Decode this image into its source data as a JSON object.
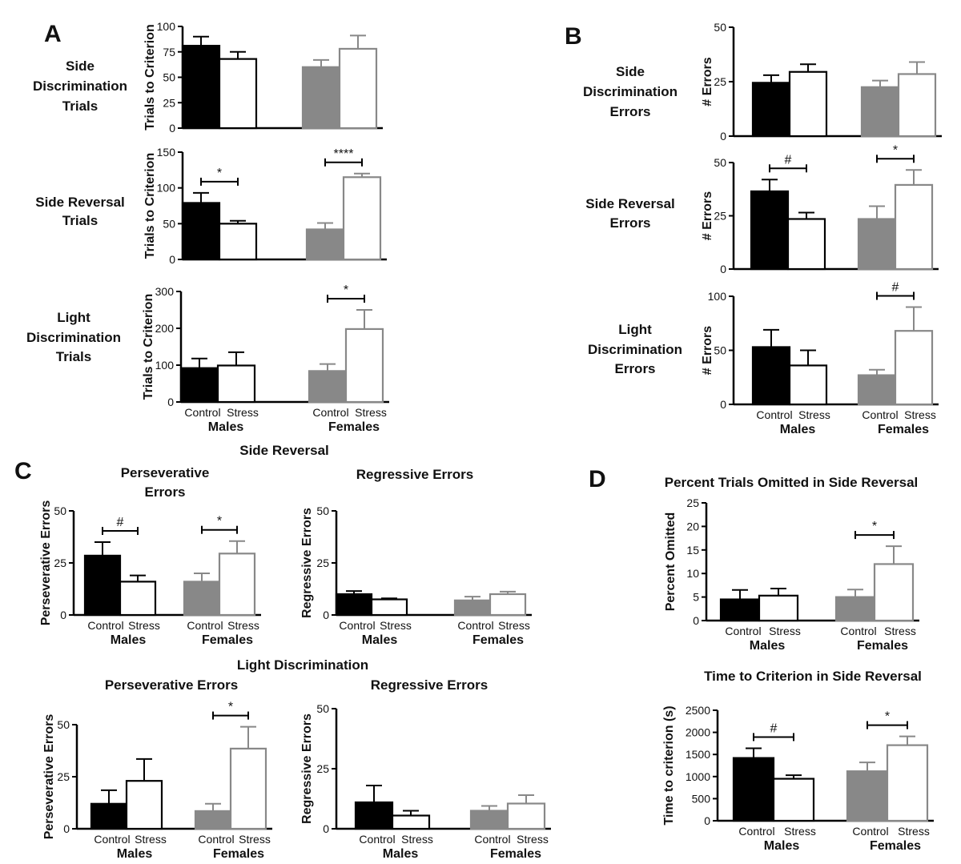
{
  "panels": {
    "A": "A",
    "B": "B",
    "C": "C",
    "D": "D"
  },
  "colors": {
    "male_control": "#000000",
    "male_stress": "#000000",
    "female_control": "#888888",
    "female_stress": "#888888",
    "axis": "#000000"
  },
  "common": {
    "categories": [
      "Control",
      "Stress",
      "Control",
      "Stress"
    ],
    "groups": [
      "Males",
      "Females"
    ]
  },
  "section_titles": {
    "c_side_reversal": "Side Reversal",
    "c_light_discrimination": "Light Discrimination"
  },
  "chart_data": [
    {
      "id": "A1",
      "type": "bar",
      "row_label": [
        "Side",
        "Discrimination",
        "Trials"
      ],
      "title": "",
      "ylabel": "Trials to Criterion",
      "ylim": [
        0,
        100
      ],
      "yticks": [
        0,
        25,
        50,
        75,
        100
      ],
      "categories": [
        "Control",
        "Stress",
        "Control",
        "Stress"
      ],
      "groups": [
        "Males",
        "Females"
      ],
      "values": [
        81,
        68,
        60,
        78
      ],
      "errors": [
        9,
        7,
        7,
        13
      ],
      "significance": []
    },
    {
      "id": "A2",
      "type": "bar",
      "row_label": [
        "Side Reversal",
        "Trials"
      ],
      "title": "",
      "ylabel": "Trials to Criterion",
      "ylim": [
        0,
        150
      ],
      "yticks": [
        0,
        50,
        100,
        150
      ],
      "categories": [
        "Control",
        "Stress",
        "Control",
        "Stress"
      ],
      "groups": [
        "Males",
        "Females"
      ],
      "values": [
        79,
        50,
        42,
        115
      ],
      "errors": [
        14,
        4,
        9,
        5
      ],
      "significance": [
        {
          "group": "Males",
          "label": "*"
        },
        {
          "group": "Females",
          "label": "****"
        }
      ]
    },
    {
      "id": "A3",
      "type": "bar",
      "row_label": [
        "Light",
        "Discrimination",
        "Trials"
      ],
      "title": "",
      "ylabel": "Trials to Criterion",
      "ylim": [
        0,
        300
      ],
      "yticks": [
        0,
        100,
        200,
        300
      ],
      "categories": [
        "Control",
        "Stress",
        "Control",
        "Stress"
      ],
      "groups": [
        "Males",
        "Females"
      ],
      "values": [
        92,
        99,
        84,
        198
      ],
      "errors": [
        26,
        36,
        19,
        52
      ],
      "significance": [
        {
          "group": "Females",
          "label": "*"
        }
      ]
    },
    {
      "id": "B1",
      "type": "bar",
      "row_label": [
        "Side",
        "Discrimination",
        "Errors"
      ],
      "title": "",
      "ylabel": "# Errors",
      "ylim": [
        0,
        50
      ],
      "yticks": [
        0,
        25,
        50
      ],
      "categories": [
        "Control",
        "Stress",
        "Control",
        "Stress"
      ],
      "groups": [
        "Males",
        "Females"
      ],
      "values": [
        24.5,
        29.5,
        22.5,
        28.5
      ],
      "errors": [
        3.5,
        3.5,
        3,
        5.5
      ],
      "significance": []
    },
    {
      "id": "B2",
      "type": "bar",
      "row_label": [
        "Side Reversal",
        "Errors"
      ],
      "title": "",
      "ylabel": "# Errors",
      "ylim": [
        0,
        50
      ],
      "yticks": [
        0,
        25,
        50
      ],
      "categories": [
        "Control",
        "Stress",
        "Control",
        "Stress"
      ],
      "groups": [
        "Males",
        "Females"
      ],
      "values": [
        36.5,
        23.5,
        23.5,
        39.5
      ],
      "errors": [
        5.5,
        3,
        6,
        7
      ],
      "significance": [
        {
          "group": "Males",
          "label": "#"
        },
        {
          "group": "Females",
          "label": "*"
        }
      ]
    },
    {
      "id": "B3",
      "type": "bar",
      "row_label": [
        "Light",
        "Discrimination",
        "Errors"
      ],
      "title": "",
      "ylabel": "# Errors",
      "ylim": [
        0,
        100
      ],
      "yticks": [
        0,
        50,
        100
      ],
      "categories": [
        "Control",
        "Stress",
        "Control",
        "Stress"
      ],
      "groups": [
        "Males",
        "Females"
      ],
      "values": [
        53,
        36,
        27,
        68
      ],
      "errors": [
        16,
        14,
        5,
        22
      ],
      "significance": [
        {
          "group": "Females",
          "label": "#"
        }
      ]
    },
    {
      "id": "C1",
      "type": "bar",
      "row_label": [],
      "title": "Perseverative Errors",
      "ylabel": "Perseverative Errors",
      "ylim": [
        0,
        50
      ],
      "yticks": [
        0,
        25,
        50
      ],
      "categories": [
        "Control",
        "Stress",
        "Control",
        "Stress"
      ],
      "groups": [
        "Males",
        "Females"
      ],
      "values": [
        28.5,
        16,
        16,
        29.5
      ],
      "errors": [
        6.5,
        3,
        4,
        6
      ],
      "significance": [
        {
          "group": "Males",
          "label": "#"
        },
        {
          "group": "Females",
          "label": "*"
        }
      ]
    },
    {
      "id": "C2",
      "type": "bar",
      "row_label": [],
      "title": "Regressive Errors",
      "ylabel": "Regressive Errors",
      "ylim": [
        0,
        50
      ],
      "yticks": [
        0,
        25,
        50
      ],
      "categories": [
        "Control",
        "Stress",
        "Control",
        "Stress"
      ],
      "groups": [
        "Males",
        "Females"
      ],
      "values": [
        10,
        7.5,
        7,
        10
      ],
      "errors": [
        1.5,
        0.5,
        1.8,
        1.2
      ],
      "significance": []
    },
    {
      "id": "C3",
      "type": "bar",
      "row_label": [],
      "title": "Perseverative Errors",
      "ylabel": "Perseverative Errors",
      "ylim": [
        0,
        50
      ],
      "yticks": [
        0,
        25,
        50
      ],
      "categories": [
        "Control",
        "Stress",
        "Control",
        "Stress"
      ],
      "groups": [
        "Males",
        "Females"
      ],
      "values": [
        12,
        23,
        8.5,
        38.5
      ],
      "errors": [
        6.5,
        10.5,
        3.5,
        10.5
      ],
      "significance": [
        {
          "group": "Females",
          "label": "*"
        }
      ]
    },
    {
      "id": "C4",
      "type": "bar",
      "row_label": [],
      "title": "Regressive Errors",
      "ylabel": "Regressive Errors",
      "ylim": [
        0,
        50
      ],
      "yticks": [
        0,
        25,
        50
      ],
      "categories": [
        "Control",
        "Stress",
        "Control",
        "Stress"
      ],
      "groups": [
        "Males",
        "Females"
      ],
      "values": [
        11,
        5.5,
        7.5,
        10.5
      ],
      "errors": [
        7,
        2,
        2,
        3.5
      ],
      "significance": []
    },
    {
      "id": "D1",
      "type": "bar",
      "row_label": [],
      "title": "Percent Trials Omitted  in Side Reversal",
      "ylabel": "Percent Omitted",
      "ylim": [
        0,
        25
      ],
      "yticks": [
        0,
        5,
        10,
        15,
        20,
        25
      ],
      "categories": [
        "Control",
        "Stress",
        "Control",
        "Stress"
      ],
      "groups": [
        "Males",
        "Females"
      ],
      "values": [
        4.5,
        5.3,
        5,
        12
      ],
      "errors": [
        2,
        1.5,
        1.6,
        3.8
      ],
      "significance": [
        {
          "group": "Females",
          "label": "*"
        }
      ]
    },
    {
      "id": "D2",
      "type": "bar",
      "row_label": [],
      "title": "Time to Criterion in Side Reversal",
      "ylabel": "Time to criterion (s)",
      "ylim": [
        0,
        2500
      ],
      "yticks": [
        0,
        500,
        1000,
        1500,
        2000,
        2500
      ],
      "categories": [
        "Control",
        "Stress",
        "Control",
        "Stress"
      ],
      "groups": [
        "Males",
        "Females"
      ],
      "values": [
        1420,
        950,
        1120,
        1710
      ],
      "errors": [
        220,
        80,
        200,
        200
      ],
      "significance": [
        {
          "group": "Males",
          "label": "#"
        },
        {
          "group": "Females",
          "label": "*"
        }
      ]
    }
  ]
}
